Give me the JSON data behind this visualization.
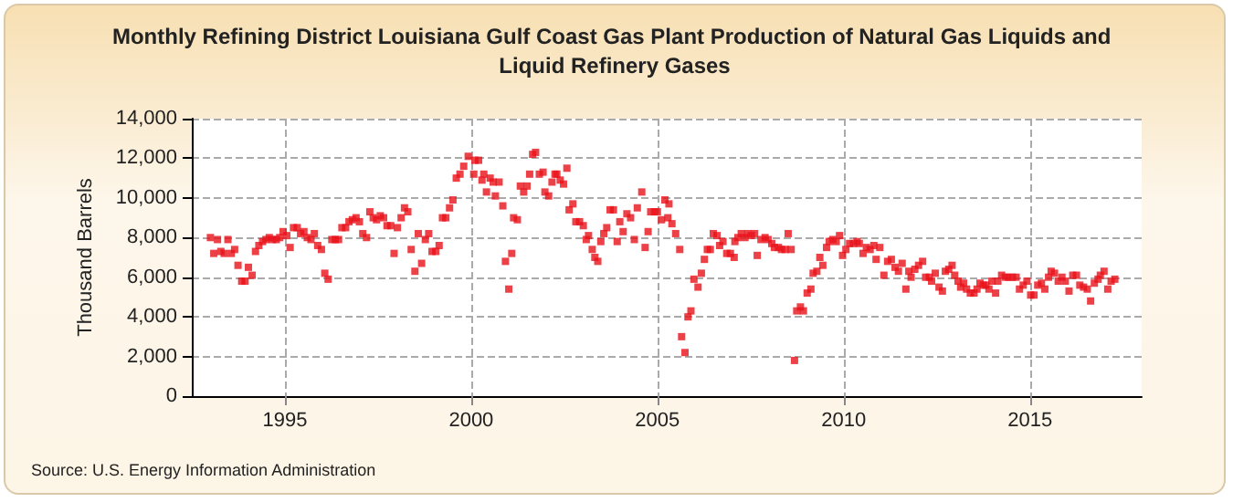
{
  "chart_data": {
    "type": "scatter",
    "title": "Monthly Refining District Louisiana Gulf Coast Gas Plant Production of Natural Gas Liquids and Liquid Refinery Gases",
    "ylabel": "Thousand Barrels",
    "annotations": [
      "Source: U.S. Energy Information Administration"
    ],
    "xlim": [
      1992.5,
      2018
    ],
    "xticks": [
      1995,
      2000,
      2005,
      2010,
      2015
    ],
    "ylim": [
      0,
      14000
    ],
    "yticks": [
      0,
      {
        "value": 2000,
        "label": "2,000"
      },
      {
        "value": 4000,
        "label": "4,000"
      },
      {
        "value": 6000,
        "label": "6,000"
      },
      {
        "value": 8000,
        "label": "8,000"
      },
      {
        "value": 10000,
        "label": "10,000"
      },
      {
        "value": 12000,
        "label": "12,000"
      },
      {
        "value": 14000,
        "label": "14,000"
      }
    ],
    "grid": true,
    "marker": "square",
    "series": [
      {
        "color": "#e8111a",
        "x": [
          1993.0,
          1993.09,
          1993.19,
          1993.28,
          1993.37,
          1993.47,
          1993.56,
          1993.65,
          1993.74,
          1993.84,
          1993.93,
          1994.02,
          1994.12,
          1994.21,
          1994.3,
          1994.4,
          1994.49,
          1994.58,
          1994.67,
          1994.77,
          1994.86,
          1994.95,
          1995.05,
          1995.14,
          1995.23,
          1995.33,
          1995.42,
          1995.51,
          1995.6,
          1995.7,
          1995.79,
          1995.88,
          1995.98,
          1996.07,
          1996.16,
          1996.26,
          1996.35,
          1996.44,
          1996.53,
          1996.63,
          1996.72,
          1996.81,
          1996.91,
          1997.0,
          1997.09,
          1997.19,
          1997.28,
          1997.37,
          1997.46,
          1997.56,
          1997.65,
          1997.74,
          1997.84,
          1997.93,
          1998.02,
          1998.12,
          1998.21,
          1998.3,
          1998.39,
          1998.49,
          1998.58,
          1998.67,
          1998.77,
          1998.86,
          1998.95,
          1999.05,
          1999.14,
          1999.23,
          1999.32,
          1999.42,
          1999.51,
          1999.6,
          1999.7,
          1999.8,
          1999.92,
          2000.07,
          2000.1,
          2000.2,
          2000.29,
          2000.34,
          2000.41,
          2000.51,
          2000.59,
          2000.65,
          2000.75,
          2000.85,
          2000.92,
          2001.01,
          2001.09,
          2001.14,
          2001.24,
          2001.32,
          2001.41,
          2001.5,
          2001.57,
          2001.65,
          2001.73,
          2001.83,
          2001.93,
          2001.98,
          2002.08,
          2002.17,
          2002.25,
          2002.3,
          2002.39,
          2002.48,
          2002.57,
          2002.63,
          2002.73,
          2002.81,
          2002.91,
          2003.01,
          2003.09,
          2003.15,
          2003.25,
          2003.32,
          2003.4,
          2003.48,
          2003.56,
          2003.64,
          2003.73,
          2003.82,
          2003.92,
          2003.99,
          2004.08,
          2004.18,
          2004.28,
          2004.38,
          2004.46,
          2004.58,
          2004.67,
          2004.75,
          2004.82,
          2004.92,
          2005.0,
          2005.11,
          2005.2,
          2005.28,
          2005.31,
          2005.39,
          2005.49,
          2005.6,
          2005.65,
          2005.74,
          2005.82,
          2005.9,
          2005.98,
          2006.09,
          2006.18,
          2006.26,
          2006.34,
          2006.42,
          2006.5,
          2006.6,
          2006.67,
          2006.76,
          2006.86,
          2006.96,
          2007.06,
          2007.08,
          2007.16,
          2007.25,
          2007.35,
          2007.43,
          2007.52,
          2007.61,
          2007.68,
          2007.78,
          2007.89,
          2007.97,
          2008.07,
          2008.14,
          2008.25,
          2008.33,
          2008.43,
          2008.51,
          2008.59,
          2008.68,
          2008.74,
          2008.84,
          2008.92,
          2009.02,
          2009.12,
          2009.18,
          2009.28,
          2009.36,
          2009.44,
          2009.54,
          2009.61,
          2009.71,
          2009.8,
          2009.89,
          2009.97,
          2010.06,
          2010.16,
          2010.26,
          2010.36,
          2010.42,
          2010.52,
          2010.61,
          2010.71,
          2010.81,
          2010.87,
          2010.97,
          2011.08,
          2011.18,
          2011.28,
          2011.38,
          2011.47,
          2011.57,
          2011.67,
          2011.75,
          2011.81,
          2011.91,
          2012.01,
          2012.12,
          2012.2,
          2012.3,
          2012.36,
          2012.46,
          2012.56,
          2012.65,
          2012.73,
          2012.82,
          2012.91,
          2012.98,
          2013.07,
          2013.14,
          2013.22,
          2013.3,
          2013.4,
          2013.5,
          2013.58,
          2013.66,
          2013.75,
          2013.82,
          2013.9,
          2013.98,
          2014.08,
          2014.14,
          2014.24,
          2014.34,
          2014.43,
          2014.53,
          2014.63,
          2014.72,
          2014.82,
          2014.92,
          2015.02,
          2015.11,
          2015.21,
          2015.31,
          2015.4,
          2015.5,
          2015.57,
          2015.66,
          2015.76,
          2015.86,
          2015.95,
          2016.05,
          2016.15,
          2016.25,
          2016.34,
          2016.44,
          2016.54,
          2016.63,
          2016.73,
          2016.83,
          2016.89,
          2016.99,
          2017.09,
          2017.18,
          2017.28
        ],
        "values": [
          8000,
          7200,
          7900,
          7300,
          7200,
          7900,
          7200,
          7400,
          6600,
          5800,
          5800,
          6500,
          6100,
          7300,
          7600,
          7800,
          7900,
          8000,
          7900,
          7900,
          8000,
          8300,
          8100,
          7500,
          8500,
          8500,
          8200,
          8300,
          8000,
          7900,
          8200,
          7600,
          7400,
          6200,
          5900,
          7900,
          7900,
          7900,
          8500,
          8500,
          8800,
          8900,
          9000,
          8800,
          8200,
          8000,
          9300,
          9000,
          8900,
          9100,
          9000,
          8600,
          8600,
          7200,
          8500,
          9000,
          9500,
          9300,
          7400,
          6300,
          8200,
          6700,
          7900,
          8200,
          7300,
          7300,
          7600,
          9000,
          9000,
          9500,
          9900,
          11000,
          11200,
          11600,
          12100,
          11200,
          11900,
          11900,
          10900,
          11200,
          10300,
          11000,
          10800,
          10100,
          10800,
          9600,
          6800,
          5400,
          7200,
          9000,
          8900,
          10600,
          10300,
          10600,
          11200,
          12200,
          12300,
          11200,
          11300,
          10300,
          10100,
          10800,
          11200,
          11200,
          10900,
          10700,
          11500,
          9400,
          9700,
          8800,
          8800,
          8600,
          7900,
          8100,
          7400,
          7000,
          6800,
          7800,
          8200,
          8500,
          9400,
          9400,
          7800,
          8800,
          8300,
          9200,
          9000,
          7900,
          9500,
          10300,
          7500,
          8300,
          9300,
          9300,
          9300,
          8900,
          9900,
          9000,
          9700,
          8700,
          8200,
          7400,
          3000,
          2200,
          4000,
          4300,
          5900,
          5500,
          6200,
          6900,
          7400,
          7400,
          8200,
          8100,
          7600,
          7800,
          7200,
          7200,
          7000,
          7800,
          8000,
          8200,
          8000,
          8200,
          8100,
          8200,
          7100,
          7900,
          8000,
          7900,
          7700,
          7500,
          7500,
          7400,
          7400,
          8200,
          7400,
          1800,
          4300,
          4500,
          4300,
          5200,
          5400,
          6200,
          6300,
          7000,
          6600,
          7500,
          7800,
          7900,
          7800,
          8100,
          7100,
          7400,
          7700,
          7700,
          7800,
          7700,
          7200,
          7500,
          7400,
          7600,
          6900,
          7500,
          6100,
          6800,
          6900,
          6500,
          6300,
          6700,
          5400,
          6300,
          6000,
          6400,
          6600,
          6800,
          6000,
          6000,
          5800,
          6200,
          5500,
          5300,
          6300,
          6400,
          6600,
          6100,
          5800,
          5500,
          5700,
          5400,
          5200,
          5200,
          5400,
          5700,
          5600,
          5600,
          5400,
          5800,
          5200,
          5800,
          6100,
          6000,
          6000,
          6000,
          6000,
          5400,
          5600,
          5800,
          5100,
          5100,
          5600,
          5700,
          5400,
          6000,
          6300,
          6200,
          5800,
          6000,
          5800,
          5300,
          6100,
          6100,
          5600,
          5500,
          5400,
          4800,
          5700,
          5900,
          6100,
          6300,
          5400,
          5800,
          5900
        ]
      }
    ]
  }
}
